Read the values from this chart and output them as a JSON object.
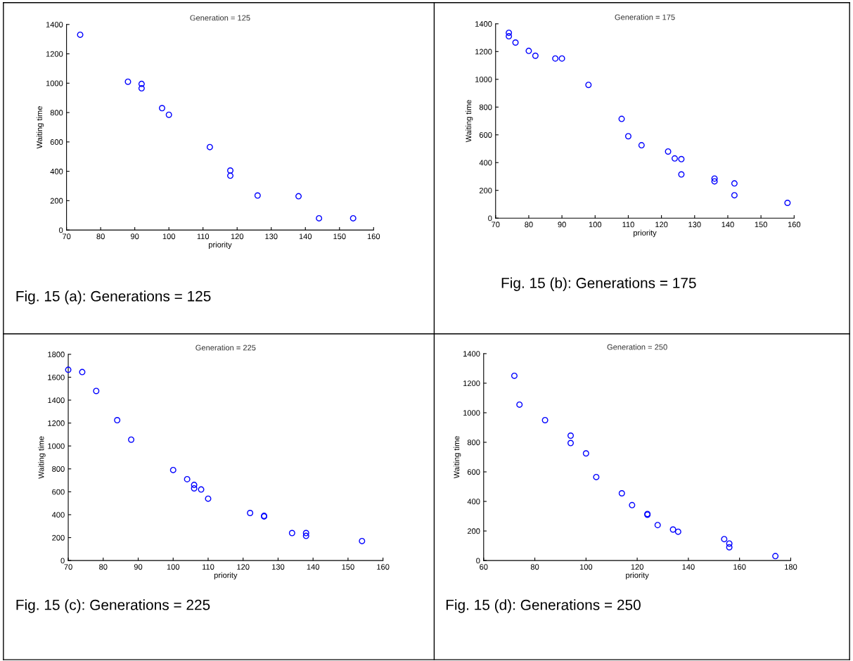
{
  "chart_data": [
    {
      "type": "scatter",
      "title": "Generation = 125",
      "xlabel": "priority",
      "ylabel": "Waiting time",
      "marker": "circle",
      "grid": false,
      "legend": false,
      "xlim": [
        70,
        160
      ],
      "xticks": [
        70,
        80,
        90,
        100,
        110,
        120,
        130,
        140,
        150,
        160
      ],
      "ylim": [
        0,
        1400
      ],
      "yticks": [
        0,
        200,
        400,
        600,
        800,
        1000,
        1200,
        1400
      ],
      "annotations": [
        "Fig. 15 (a): Generations = 125"
      ],
      "series": [
        {
          "color": "#0000ff",
          "x": [
            74,
            88,
            92,
            92,
            98,
            100,
            112,
            118,
            118,
            126,
            138,
            144,
            154
          ],
          "values": [
            1330,
            1010,
            995,
            965,
            830,
            785,
            565,
            405,
            370,
            235,
            230,
            80,
            80
          ]
        }
      ]
    },
    {
      "type": "scatter",
      "title": "Generation = 175",
      "xlabel": "priority",
      "ylabel": "Waiting time",
      "marker": "circle",
      "grid": false,
      "legend": false,
      "xlim": [
        70,
        160
      ],
      "xticks": [
        70,
        80,
        90,
        100,
        110,
        120,
        130,
        140,
        150,
        160
      ],
      "ylim": [
        0,
        1400
      ],
      "yticks": [
        0,
        200,
        400,
        600,
        800,
        1000,
        1200,
        1400
      ],
      "annotations": [
        "Fig. 15 (b): Generations = 175"
      ],
      "series": [
        {
          "color": "#0000ff",
          "x": [
            74,
            74,
            76,
            80,
            82,
            88,
            90,
            98,
            108,
            110,
            114,
            122,
            124,
            126,
            126,
            136,
            136,
            142,
            142,
            158
          ],
          "values": [
            1335,
            1310,
            1265,
            1205,
            1170,
            1150,
            1150,
            960,
            715,
            590,
            525,
            480,
            430,
            425,
            315,
            285,
            265,
            250,
            165,
            110
          ]
        }
      ]
    },
    {
      "type": "scatter",
      "title": "Generation = 225",
      "xlabel": "priority",
      "ylabel": "Waiting time",
      "marker": "circle",
      "grid": false,
      "legend": false,
      "xlim": [
        70,
        160
      ],
      "xticks": [
        70,
        80,
        90,
        100,
        110,
        120,
        130,
        140,
        150,
        160
      ],
      "ylim": [
        0,
        1800
      ],
      "yticks": [
        0,
        200,
        400,
        600,
        800,
        1000,
        1200,
        1400,
        1600,
        1800
      ],
      "annotations": [
        "Fig. 15 (c): Generations = 225"
      ],
      "series": [
        {
          "color": "#0000ff",
          "x": [
            70,
            74,
            78,
            84,
            88,
            100,
            104,
            106,
            106,
            108,
            110,
            122,
            126,
            126,
            134,
            138,
            138,
            154
          ],
          "values": [
            1665,
            1645,
            1480,
            1225,
            1055,
            790,
            710,
            660,
            630,
            620,
            540,
            415,
            390,
            385,
            240,
            240,
            215,
            170
          ]
        }
      ]
    },
    {
      "type": "scatter",
      "title": "Generation = 250",
      "xlabel": "priority",
      "ylabel": "Waiting time",
      "marker": "circle",
      "grid": false,
      "legend": false,
      "xlim": [
        60,
        180
      ],
      "xticks": [
        60,
        80,
        100,
        120,
        140,
        160,
        180
      ],
      "ylim": [
        0,
        1400
      ],
      "yticks": [
        0,
        200,
        400,
        600,
        800,
        1000,
        1200,
        1400
      ],
      "annotations": [
        "Fig. 15 (d): Generations = 250"
      ],
      "series": [
        {
          "color": "#0000ff",
          "x": [
            72,
            74,
            84,
            94,
            94,
            100,
            104,
            114,
            118,
            124,
            124,
            128,
            134,
            136,
            154,
            156,
            156,
            174
          ],
          "values": [
            1250,
            1055,
            950,
            845,
            795,
            725,
            565,
            455,
            375,
            315,
            310,
            240,
            210,
            195,
            145,
            115,
            90,
            30
          ]
        }
      ]
    }
  ]
}
